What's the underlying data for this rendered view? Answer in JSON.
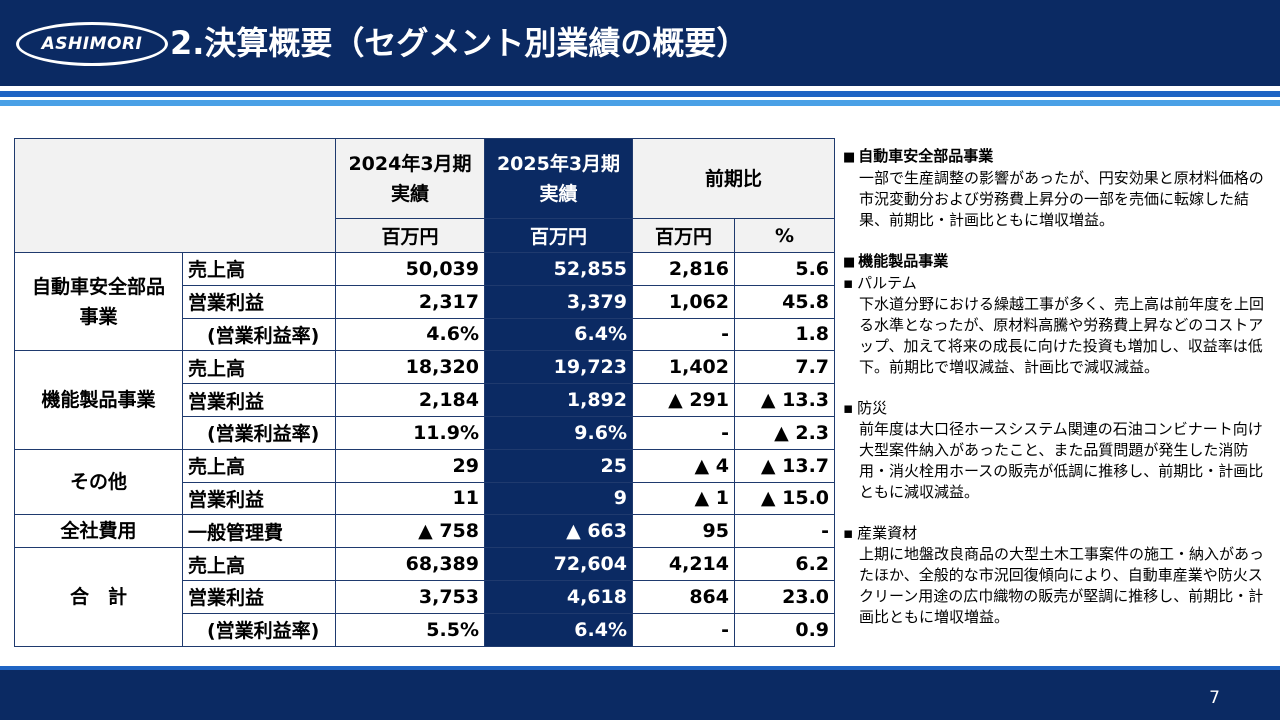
{
  "header": {
    "logo_text": "ASHIMORI",
    "title": "2.決算概要（セグメント別業績の概要）"
  },
  "table": {
    "head": {
      "col_fy2024": "2024年3月期\n実績",
      "col_fy2025": "2025年3月期\n実績",
      "col_change": "前期比",
      "unit_2024": "百万円",
      "unit_2025": "百万円",
      "unit_change": "百万円",
      "unit_pct": "%"
    },
    "segments": [
      {
        "name": "自動車安全部品\n事業",
        "rows": [
          {
            "item": "売上高",
            "fy2024": "50,039",
            "fy2025": "52,855",
            "diff": "2,816",
            "pct": "5.6"
          },
          {
            "item": "営業利益",
            "fy2024": "2,317",
            "fy2025": "3,379",
            "diff": "1,062",
            "pct": "45.8"
          },
          {
            "item": "　(営業利益率)",
            "fy2024": "4.6%",
            "fy2025": "6.4%",
            "diff": "-",
            "pct": "1.8"
          }
        ]
      },
      {
        "name": "機能製品事業",
        "rows": [
          {
            "item": "売上高",
            "fy2024": "18,320",
            "fy2025": "19,723",
            "diff": "1,402",
            "pct": "7.7"
          },
          {
            "item": "営業利益",
            "fy2024": "2,184",
            "fy2025": "1,892",
            "diff": "▲ 291",
            "pct": "▲ 13.3"
          },
          {
            "item": "　(営業利益率)",
            "fy2024": "11.9%",
            "fy2025": "9.6%",
            "diff": "-",
            "pct": "▲ 2.3"
          }
        ]
      },
      {
        "name": "その他",
        "rows": [
          {
            "item": "売上高",
            "fy2024": "29",
            "fy2025": "25",
            "diff": "▲ 4",
            "pct": "▲ 13.7"
          },
          {
            "item": "営業利益",
            "fy2024": "11",
            "fy2025": "9",
            "diff": "▲ 1",
            "pct": "▲ 15.0"
          }
        ]
      },
      {
        "name": "全社費用",
        "rows": [
          {
            "item": "一般管理費",
            "fy2024": "▲ 758",
            "fy2025": "▲ 663",
            "diff": "95",
            "pct": "-"
          }
        ]
      },
      {
        "name": "合　計",
        "rows": [
          {
            "item": "売上高",
            "fy2024": "68,389",
            "fy2025": "72,604",
            "diff": "4,214",
            "pct": "6.2"
          },
          {
            "item": "営業利益",
            "fy2024": "3,753",
            "fy2025": "4,618",
            "diff": "864",
            "pct": "23.0"
          },
          {
            "item": "　(営業利益率)",
            "fy2024": "5.5%",
            "fy2025": "6.4%",
            "diff": "-",
            "pct": "0.9"
          }
        ]
      }
    ]
  },
  "notes": {
    "auto": {
      "title": "自動車安全部品事業",
      "body": "一部で生産調整の影響があったが、円安効果と原材料価格の市況変動分および労務費上昇分の一部を売価に転嫁した結果、前期比・計画比ともに増収増益。"
    },
    "func": {
      "title": "機能製品事業",
      "pultem_title": "パルテム",
      "pultem_body": "下水道分野における繰越工事が多く、売上高は前年度を上回る水準となったが、原材料高騰や労務費上昇などのコストアップ、加えて将来の成長に向けた投資も増加し、収益率は低下。前期比で増収減益、計画比で減収減益。",
      "bousai_title": "防災",
      "bousai_body": "前年度は大口径ホースシステム関連の石油コンビナート向け大型案件納入があったこと、また品質問題が発生した消防用・消火栓用ホースの販売が低調に推移し、前期比・計画比ともに減収減益。",
      "sangyo_title": "産業資材",
      "sangyo_body": "上期に地盤改良商品の大型土木工事案件の施工・納入があったほか、全般的な市況回復傾向により、自動車産業や防火スクリーン用途の広巾織物の販売が堅調に推移し、前期比・計画比ともに増収増益。"
    }
  },
  "footer": {
    "page_number": "7"
  },
  "colors": {
    "navy": "#0b2a63",
    "stripe_blue": "#1f64c3",
    "stripe_light": "#4aa0e6"
  }
}
